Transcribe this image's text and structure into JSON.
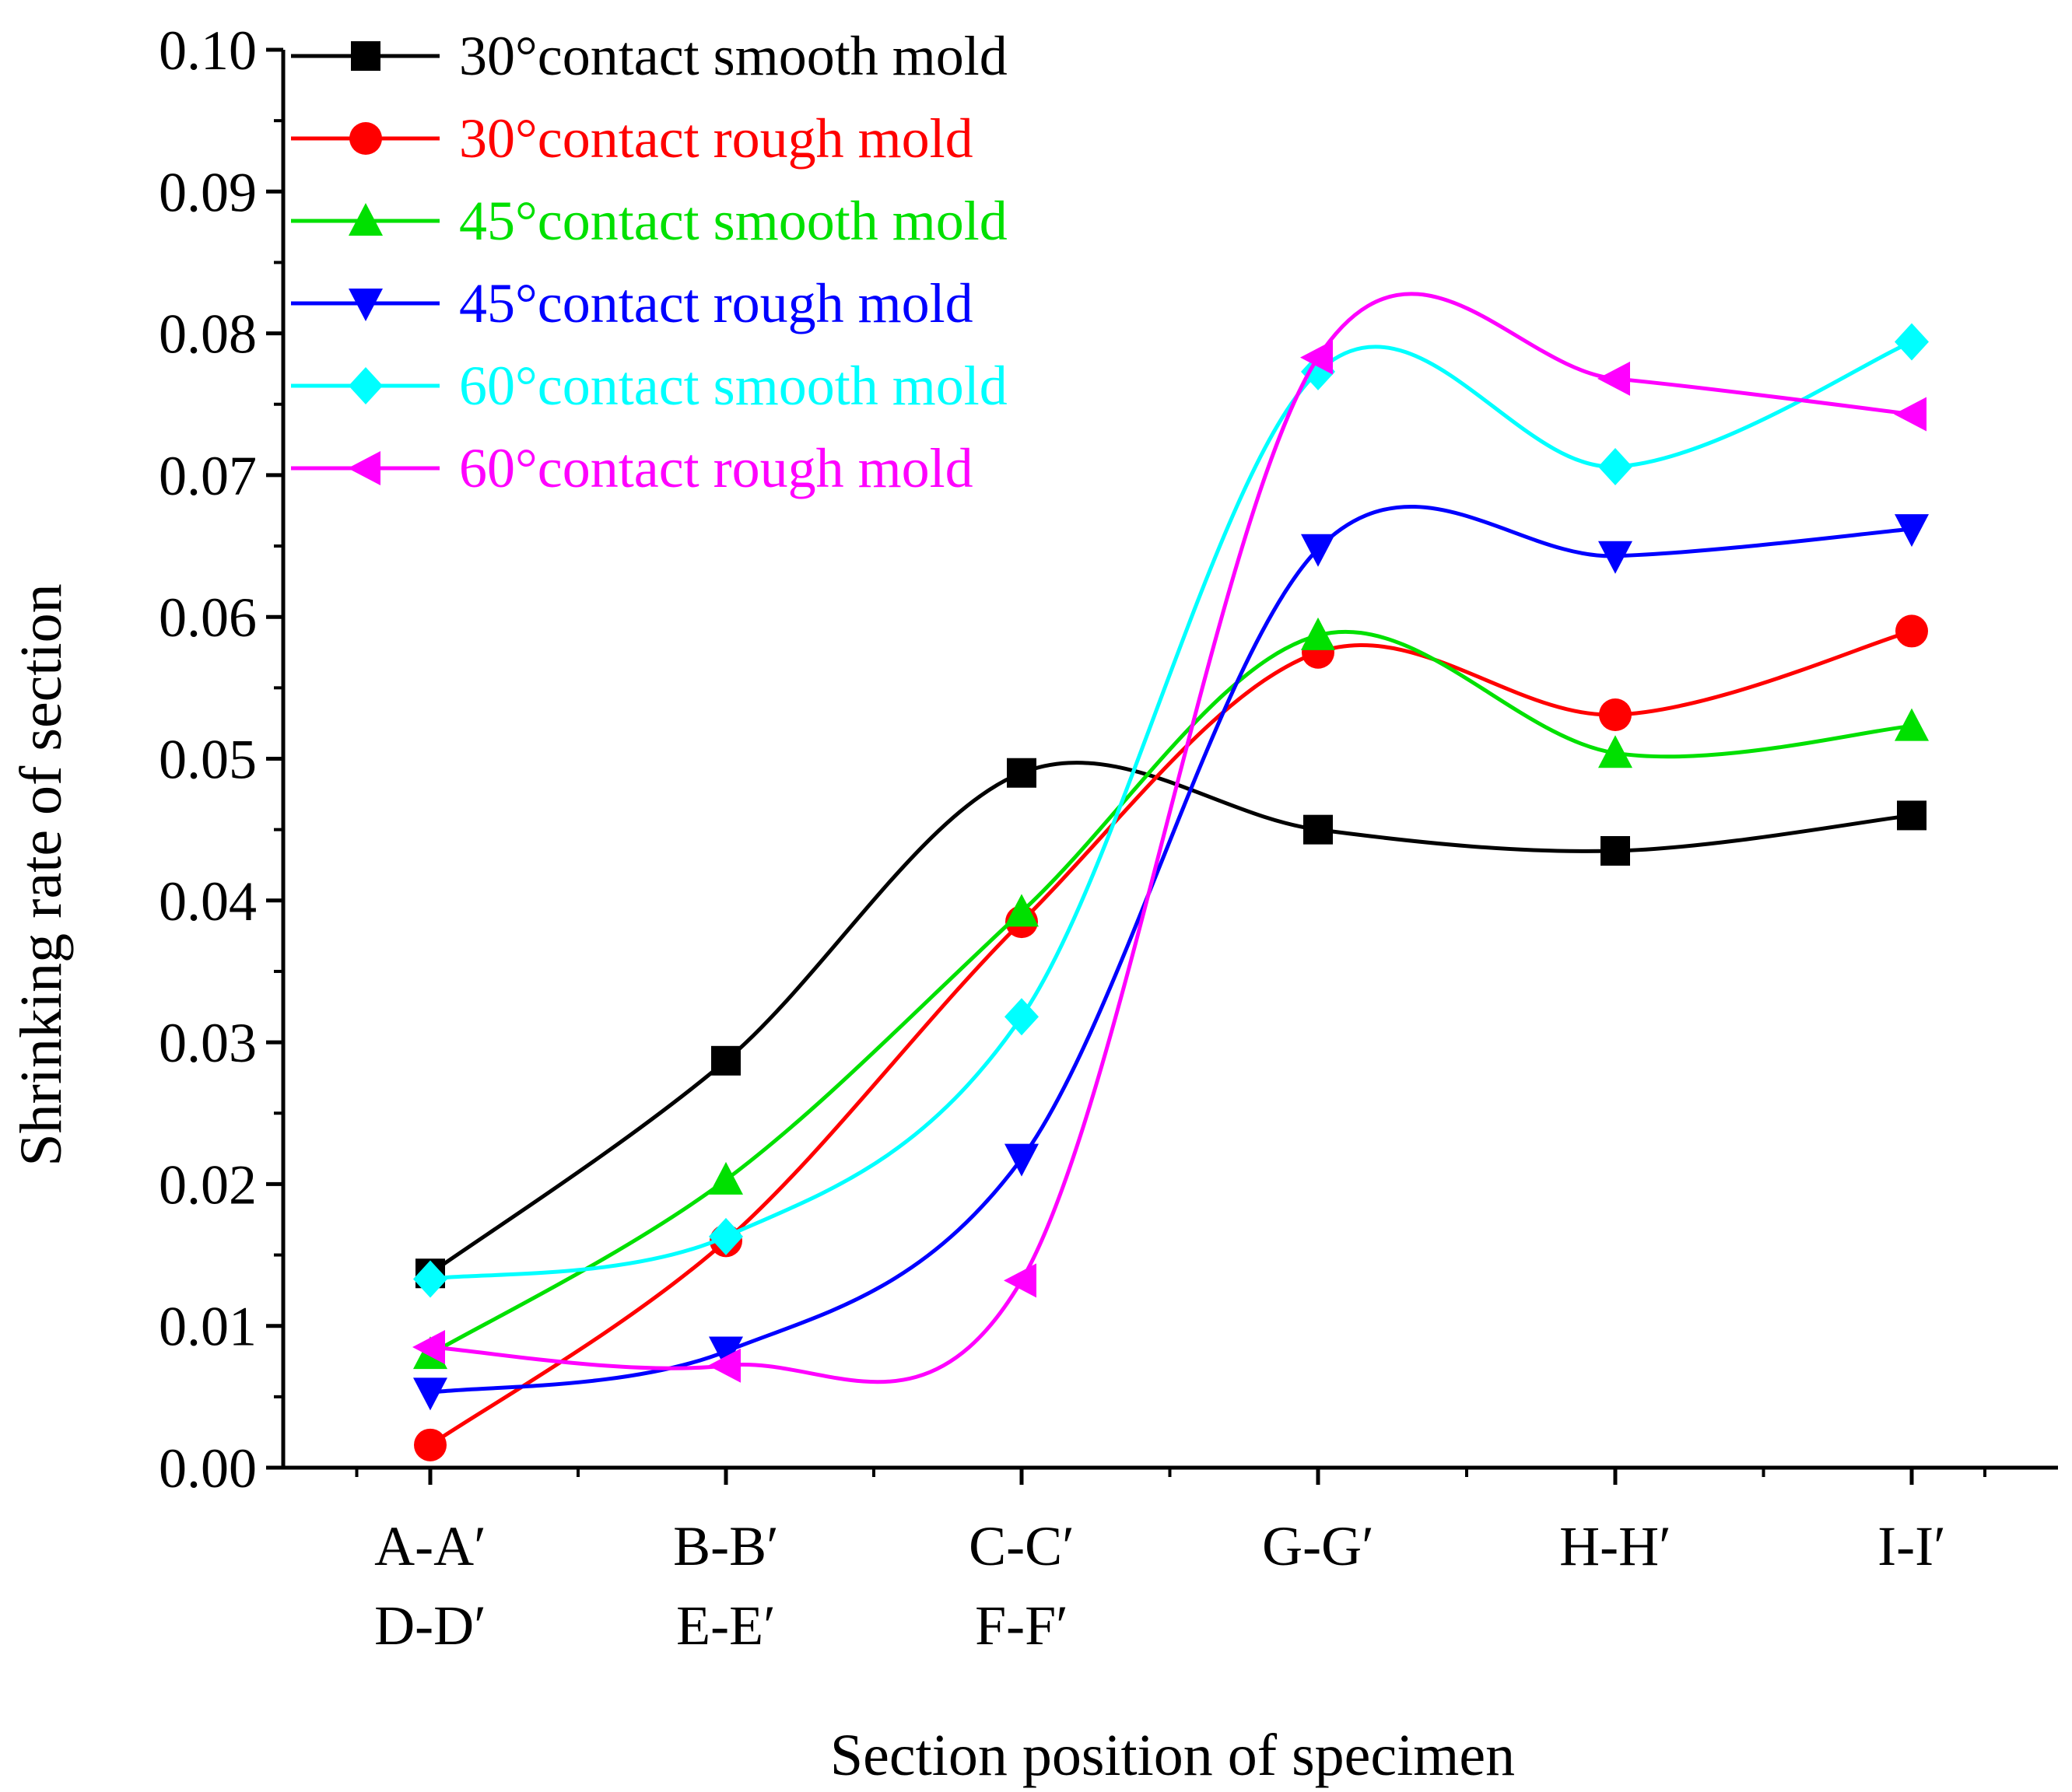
{
  "chart_data": {
    "type": "line",
    "title": "",
    "xlabel": "Section position of specimen",
    "ylabel": "Shrinking rate of section",
    "ylim": [
      0.0,
      0.1
    ],
    "yticks": [
      "0.00",
      "0.01",
      "0.02",
      "0.03",
      "0.04",
      "0.05",
      "0.06",
      "0.07",
      "0.08",
      "0.09",
      "0.10"
    ],
    "grid": false,
    "legend_position": "top-left",
    "smooth": true,
    "categories": [
      [
        "A-A′",
        "D-D′"
      ],
      [
        "B-B′",
        "E-E′"
      ],
      [
        "C-C′",
        "F-F′"
      ],
      [
        "G-G′"
      ],
      [
        "H-H′"
      ],
      [
        "I-I′"
      ]
    ],
    "series": [
      {
        "name": "30°contact smooth mold",
        "color": "#000000",
        "marker": "square",
        "values": [
          0.0137,
          0.0287,
          0.049,
          0.045,
          0.0435,
          0.046
        ]
      },
      {
        "name": "30°contact rough mold",
        "color": "#ff0000",
        "marker": "circle",
        "values": [
          0.0016,
          0.016,
          0.0385,
          0.0575,
          0.0531,
          0.059
        ]
      },
      {
        "name": "45°contact smooth mold",
        "color": "#00e000",
        "marker": "triangle-up",
        "values": [
          0.008,
          0.0203,
          0.0392,
          0.0587,
          0.0504,
          0.0523
        ]
      },
      {
        "name": "45°contact rough mold",
        "color": "#0000ff",
        "marker": "triangle-down",
        "values": [
          0.0053,
          0.0082,
          0.0218,
          0.0648,
          0.0643,
          0.0662
        ]
      },
      {
        "name": "60°contact smooth mold",
        "color": "#00ffff",
        "marker": "diamond",
        "values": [
          0.0133,
          0.0163,
          0.0318,
          0.0773,
          0.0706,
          0.0794
        ]
      },
      {
        "name": "60°contact rough mold",
        "color": "#ff00ff",
        "marker": "triangle-left",
        "values": [
          0.0085,
          0.0072,
          0.0132,
          0.0783,
          0.0768,
          0.0743
        ]
      }
    ]
  }
}
